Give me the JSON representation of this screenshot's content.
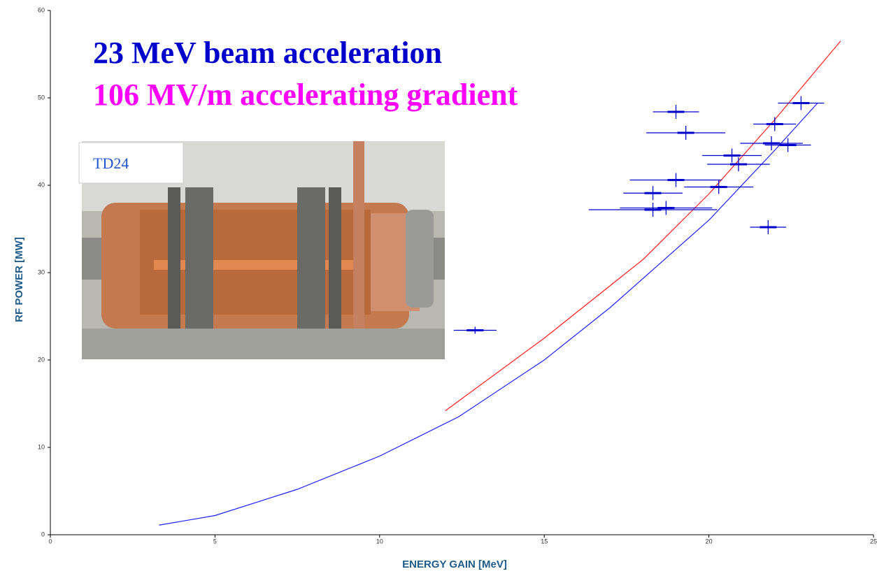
{
  "chart_data": {
    "type": "errorbar",
    "title": "23 MeV beam acceleration",
    "subtitle": "106 MV/m accelerating gradient",
    "inset_label": "TD24",
    "x_label": "ENERGY GAIN [MeV]",
    "y_label": "RF POWER [MW]",
    "xlim": [
      0,
      25
    ],
    "xticks": [
      0,
      5,
      10,
      15,
      20,
      25
    ],
    "ylim": [
      0,
      60
    ],
    "yticks": [
      0,
      10,
      20,
      30,
      40,
      50,
      60
    ],
    "lines": [
      {
        "color": "#2020ff",
        "x": [
          3.3,
          5,
          7.5,
          10,
          12.4,
          15,
          17,
          20,
          22,
          23.3
        ],
        "values": [
          1.1,
          2.2,
          5.2,
          9,
          13.5,
          20,
          26,
          36,
          44,
          49.4
        ]
      },
      {
        "color": "#ff2020",
        "x": [
          12,
          15,
          18,
          20,
          22,
          24
        ],
        "values": [
          14.2,
          22.5,
          31.5,
          39,
          47.5,
          56.5
        ]
      }
    ],
    "points": {
      "color": "#0000cc",
      "x": [
        19.0,
        19.3,
        22.0,
        22.4,
        22.8,
        20.7,
        20.9,
        19.0,
        20.3,
        18.3,
        18.3,
        18.7,
        21.8,
        12.9,
        21.9
      ],
      "values": [
        48.4,
        46.0,
        47.0,
        44.6,
        49.4,
        43.4,
        42.4,
        40.6,
        39.8,
        39.1,
        37.2,
        37.4,
        35.2,
        23.4,
        44.8
      ],
      "xerr": [
        0.7,
        1.2,
        0.65,
        0.7,
        0.7,
        0.9,
        0.95,
        1.4,
        1.05,
        0.9,
        1.95,
        1.4,
        0.55,
        0.65,
        0.95
      ],
      "yerr": [
        0.8,
        0.8,
        0.8,
        0.8,
        0.8,
        0.8,
        0.8,
        0.8,
        0.8,
        0.8,
        0.8,
        0.8,
        0.8,
        0.4,
        0.8
      ]
    }
  }
}
